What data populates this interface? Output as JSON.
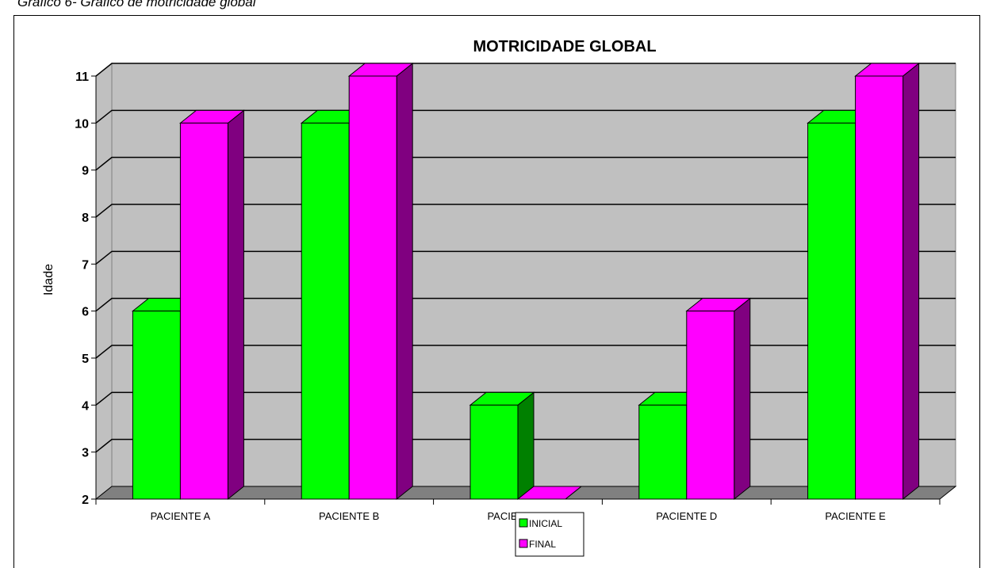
{
  "caption": "Gráfico 6- Gráfico de motricidade global",
  "chart_data": {
    "type": "bar",
    "title": "MOTRICIDADE GLOBAL",
    "ylabel": "Idade",
    "xlabel": "",
    "categories": [
      "PACIENTE A",
      "PACIENTE B",
      "PACIENTE C",
      "PACIENTE D",
      "PACIENTE E"
    ],
    "series": [
      {
        "name": "INICIAL",
        "values": [
          6,
          10,
          4,
          4,
          10
        ],
        "color": "#00ff00",
        "side": "#008000"
      },
      {
        "name": "FINAL",
        "values": [
          10,
          11,
          2,
          6,
          11
        ],
        "color": "#ff00ff",
        "side": "#800080"
      }
    ],
    "ylim": [
      2,
      11
    ],
    "yticks": [
      2,
      3,
      4,
      5,
      6,
      7,
      8,
      9,
      10,
      11
    ],
    "grid": true,
    "legend_position": "bottom",
    "style": "3d-clustered-column",
    "colors": {
      "wall": "#c0c0c0",
      "floor": "#808080",
      "grid": "#000000"
    }
  }
}
